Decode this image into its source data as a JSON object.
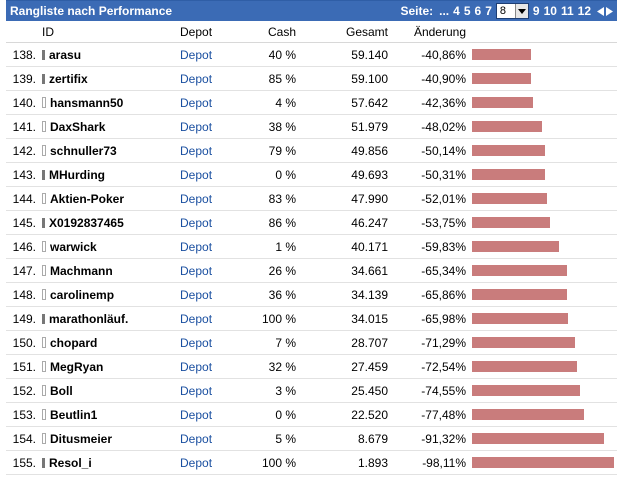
{
  "title": "Rangliste nach Performance",
  "pager": {
    "label": "Seite:",
    "ellipsis": "...",
    "pages_before": [
      "4",
      "5",
      "6",
      "7"
    ],
    "current": "8",
    "pages_after": [
      "9",
      "10",
      "11",
      "12"
    ],
    "prev_icon": "triangle-left-icon",
    "next_icon": "triangle-right-icon"
  },
  "columns": {
    "id": "ID",
    "depot": "Depot",
    "cash": "Cash",
    "gesamt": "Gesamt",
    "change": "Änderung"
  },
  "colors": {
    "header_bg": "#3b6bb5",
    "bar": "#c97c7c",
    "link": "#1a4fa0"
  },
  "rows": [
    {
      "rank": "138.",
      "id": "arasu",
      "depot": "Depot",
      "cash": "40 %",
      "gesamt": "59.140",
      "change": "-40,86%",
      "change_value": -40.86,
      "icon": "filled"
    },
    {
      "rank": "139.",
      "id": "zertifix",
      "depot": "Depot",
      "cash": "85 %",
      "gesamt": "59.100",
      "change": "-40,90%",
      "change_value": -40.9,
      "icon": "filled"
    },
    {
      "rank": "140.",
      "id": "hansmann50",
      "depot": "Depot",
      "cash": "4 %",
      "gesamt": "57.642",
      "change": "-42,36%",
      "change_value": -42.36,
      "icon": "hollow"
    },
    {
      "rank": "141.",
      "id": "DaxShark",
      "depot": "Depot",
      "cash": "38 %",
      "gesamt": "51.979",
      "change": "-48,02%",
      "change_value": -48.02,
      "icon": "hollow"
    },
    {
      "rank": "142.",
      "id": "schnuller73",
      "depot": "Depot",
      "cash": "79 %",
      "gesamt": "49.856",
      "change": "-50,14%",
      "change_value": -50.14,
      "icon": "hollow"
    },
    {
      "rank": "143.",
      "id": "MHurding",
      "depot": "Depot",
      "cash": "0 %",
      "gesamt": "49.693",
      "change": "-50,31%",
      "change_value": -50.31,
      "icon": "filled"
    },
    {
      "rank": "144.",
      "id": "Aktien-Poker",
      "depot": "Depot",
      "cash": "83 %",
      "gesamt": "47.990",
      "change": "-52,01%",
      "change_value": -52.01,
      "icon": "hollow"
    },
    {
      "rank": "145.",
      "id": "X0192837465",
      "depot": "Depot",
      "cash": "86 %",
      "gesamt": "46.247",
      "change": "-53,75%",
      "change_value": -53.75,
      "icon": "filled"
    },
    {
      "rank": "146.",
      "id": "warwick",
      "depot": "Depot",
      "cash": "1 %",
      "gesamt": "40.171",
      "change": "-59,83%",
      "change_value": -59.83,
      "icon": "hollow"
    },
    {
      "rank": "147.",
      "id": "Machmann",
      "depot": "Depot",
      "cash": "26 %",
      "gesamt": "34.661",
      "change": "-65,34%",
      "change_value": -65.34,
      "icon": "hollow"
    },
    {
      "rank": "148.",
      "id": "carolinemp",
      "depot": "Depot",
      "cash": "36 %",
      "gesamt": "34.139",
      "change": "-65,86%",
      "change_value": -65.86,
      "icon": "hollow"
    },
    {
      "rank": "149.",
      "id": "marathonläuf.",
      "depot": "Depot",
      "cash": "100 %",
      "gesamt": "34.015",
      "change": "-65,98%",
      "change_value": -65.98,
      "icon": "filled"
    },
    {
      "rank": "150.",
      "id": "chopard",
      "depot": "Depot",
      "cash": "7 %",
      "gesamt": "28.707",
      "change": "-71,29%",
      "change_value": -71.29,
      "icon": "hollow"
    },
    {
      "rank": "151.",
      "id": "MegRyan",
      "depot": "Depot",
      "cash": "32 %",
      "gesamt": "27.459",
      "change": "-72,54%",
      "change_value": -72.54,
      "icon": "hollow"
    },
    {
      "rank": "152.",
      "id": "Boll",
      "depot": "Depot",
      "cash": "3 %",
      "gesamt": "25.450",
      "change": "-74,55%",
      "change_value": -74.55,
      "icon": "hollow"
    },
    {
      "rank": "153.",
      "id": "Beutlin1",
      "depot": "Depot",
      "cash": "0 %",
      "gesamt": "22.520",
      "change": "-77,48%",
      "change_value": -77.48,
      "icon": "hollow"
    },
    {
      "rank": "154.",
      "id": "Ditusmeier",
      "depot": "Depot",
      "cash": "5 %",
      "gesamt": "8.679",
      "change": "-91,32%",
      "change_value": -91.32,
      "icon": "hollow"
    },
    {
      "rank": "155.",
      "id": "Resol_i",
      "depot": "Depot",
      "cash": "100 %",
      "gesamt": "1.893",
      "change": "-98,11%",
      "change_value": -98.11,
      "icon": "filled"
    }
  ]
}
